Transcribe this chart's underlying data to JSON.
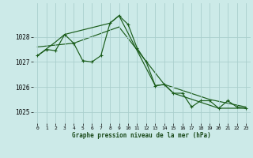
{
  "background_color": "#cceae8",
  "grid_color": "#aacfcd",
  "line_color": "#1a5c1a",
  "marker_color": "#1a5c1a",
  "title": "Graphe pression niveau de la mer (hPa)",
  "ylim": [
    1024.55,
    1029.35
  ],
  "xlim": [
    -0.5,
    23.5
  ],
  "yticks": [
    1025,
    1026,
    1027,
    1028
  ],
  "xticks": [
    0,
    1,
    2,
    3,
    4,
    5,
    6,
    7,
    8,
    9,
    10,
    11,
    12,
    13,
    14,
    15,
    16,
    17,
    18,
    19,
    20,
    21,
    22,
    23
  ],
  "series_main": [
    [
      0,
      1027.25
    ],
    [
      1,
      1027.5
    ],
    [
      2,
      1027.45
    ],
    [
      3,
      1028.1
    ],
    [
      4,
      1027.75
    ],
    [
      5,
      1027.05
    ],
    [
      6,
      1027.0
    ],
    [
      7,
      1027.25
    ],
    [
      8,
      1028.55
    ],
    [
      9,
      1028.85
    ],
    [
      10,
      1028.5
    ],
    [
      11,
      1027.55
    ],
    [
      12,
      1027.0
    ],
    [
      13,
      1026.05
    ],
    [
      14,
      1026.1
    ],
    [
      15,
      1025.75
    ],
    [
      16,
      1025.75
    ],
    [
      17,
      1025.2
    ],
    [
      18,
      1025.45
    ],
    [
      19,
      1025.45
    ],
    [
      20,
      1025.15
    ],
    [
      21,
      1025.45
    ],
    [
      22,
      1025.2
    ],
    [
      23,
      1025.15
    ]
  ],
  "series_smooth": [
    [
      0,
      1027.25
    ],
    [
      2,
      1027.8
    ],
    [
      3,
      1028.1
    ],
    [
      8,
      1028.55
    ],
    [
      9,
      1028.85
    ],
    [
      13,
      1026.05
    ],
    [
      14,
      1026.1
    ],
    [
      15,
      1025.75
    ],
    [
      20,
      1025.15
    ],
    [
      23,
      1025.15
    ]
  ],
  "series_trend": [
    [
      0,
      1027.6
    ],
    [
      4,
      1027.75
    ],
    [
      9,
      1028.4
    ],
    [
      14,
      1026.1
    ],
    [
      19,
      1025.5
    ],
    [
      23,
      1025.2
    ]
  ]
}
